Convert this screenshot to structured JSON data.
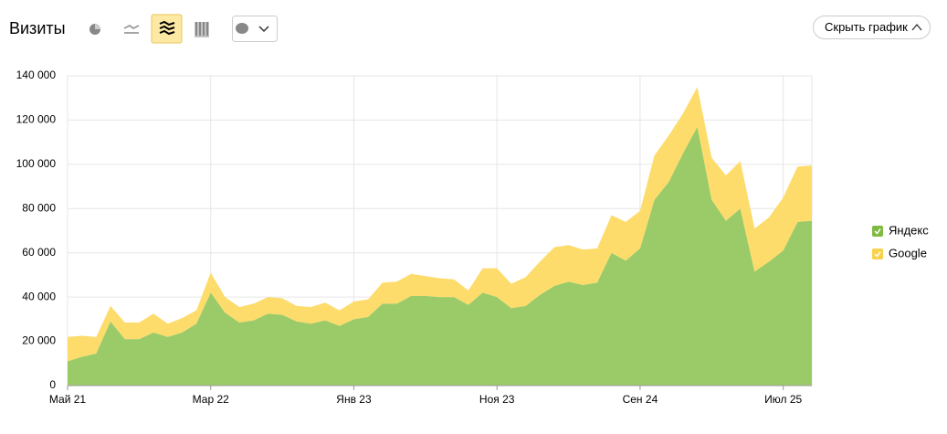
{
  "button": "Скрыть график",
  "chart_data": {
    "type": "stacked_area",
    "title": "Визиты",
    "categories": [
      "Май 21",
      null,
      null,
      null,
      null,
      null,
      null,
      null,
      null,
      null,
      "Мар 22",
      null,
      null,
      null,
      null,
      null,
      null,
      null,
      null,
      null,
      "Янв 23",
      null,
      null,
      null,
      null,
      null,
      null,
      null,
      null,
      null,
      "Ноя 23",
      null,
      null,
      null,
      null,
      null,
      null,
      null,
      null,
      null,
      "Сен 24",
      null,
      null,
      null,
      null,
      null,
      null,
      null,
      null,
      null,
      "Июл 25",
      null,
      null
    ],
    "series": [
      {
        "name": "Яндекс",
        "color": "#9bcb68",
        "legend_color": "#7fba42",
        "values": [
          11000,
          13000,
          14500,
          29000,
          21000,
          21000,
          24000,
          22000,
          24000,
          28000,
          42000,
          33000,
          28500,
          29500,
          32500,
          32000,
          29000,
          28000,
          29500,
          27000,
          30000,
          31000,
          37000,
          37000,
          40500,
          40500,
          40000,
          40000,
          36500,
          42000,
          40000,
          35000,
          36000,
          41000,
          45000,
          47000,
          45500,
          46500,
          60000,
          56500,
          62000,
          84000,
          92000,
          105000,
          117000,
          84000,
          74500,
          80000,
          51500,
          56000,
          61000,
          74000,
          74500
        ]
      },
      {
        "name": "Google",
        "color": "#fddc6b",
        "legend_color": "#f7d24a",
        "values": [
          11000,
          9500,
          7500,
          7000,
          7500,
          7500,
          8500,
          6000,
          6500,
          6000,
          9000,
          7000,
          7000,
          7500,
          7500,
          7500,
          7000,
          7500,
          8000,
          7000,
          8000,
          8000,
          9500,
          10000,
          10000,
          9000,
          8500,
          8000,
          6500,
          11000,
          13000,
          11000,
          13000,
          15000,
          17500,
          16500,
          16000,
          15500,
          17000,
          17500,
          17000,
          20000,
          21000,
          18000,
          18000,
          19000,
          20500,
          21500,
          19500,
          20000,
          24000,
          25000,
          25000
        ]
      }
    ],
    "ylim": [
      0,
      140000
    ],
    "yticks": [
      0,
      {
        "value": 20000,
        "label": "20 000"
      },
      {
        "value": 40000,
        "label": "40 000"
      },
      {
        "value": 60000,
        "label": "60 000"
      },
      {
        "value": 80000,
        "label": "80 000"
      },
      {
        "value": 100000,
        "label": "100 000"
      },
      {
        "value": 120000,
        "label": "120 000"
      },
      {
        "value": 140000,
        "label": "140 000"
      }
    ],
    "grid": true,
    "legend": "right"
  }
}
